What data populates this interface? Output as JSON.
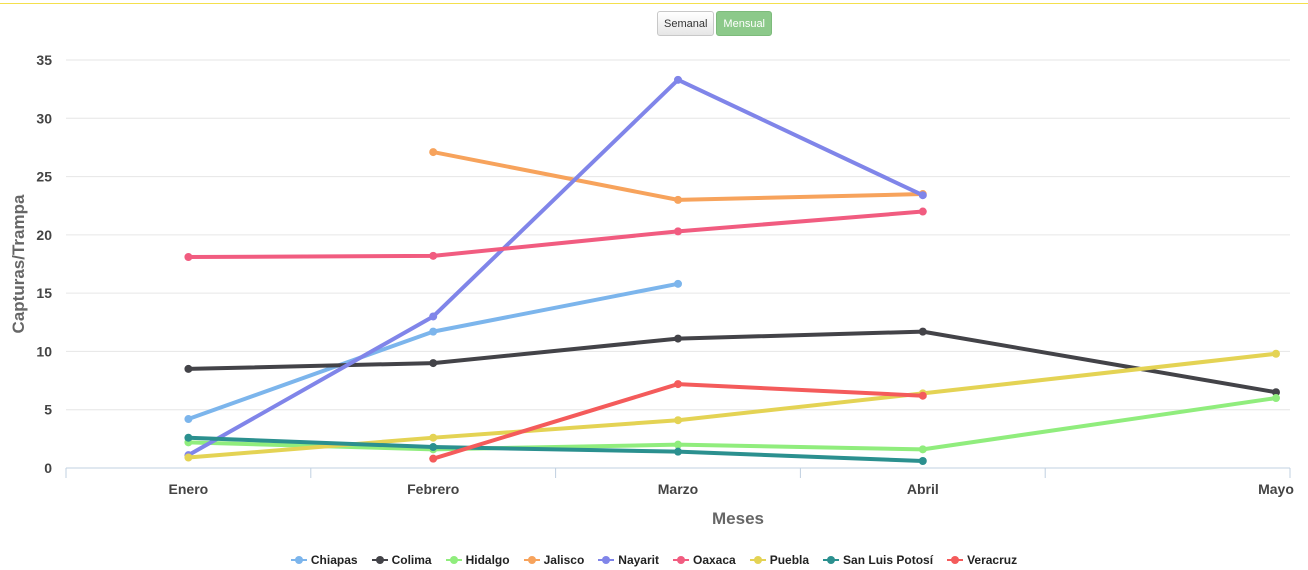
{
  "controls": {
    "weekly_label": "Semanal",
    "monthly_label": "Mensual"
  },
  "chart_data": {
    "type": "line",
    "title": "",
    "xlabel": "Meses",
    "ylabel": "Capturas/Trampa",
    "categories": [
      "Enero",
      "Febrero",
      "Marzo",
      "Abril",
      "Mayo"
    ],
    "yticks": [
      "0",
      "5",
      "10",
      "15",
      "20",
      "25",
      "30",
      "35"
    ],
    "ylim": [
      0,
      35
    ],
    "grid": true,
    "legend_position": "bottom",
    "series": [
      {
        "name": "Chiapas",
        "color": "#7cb5ec",
        "values": [
          4.2,
          11.7,
          15.8,
          null,
          null
        ]
      },
      {
        "name": "Colima",
        "color": "#434348",
        "values": [
          8.5,
          9.0,
          11.1,
          11.7,
          6.5
        ]
      },
      {
        "name": "Hidalgo",
        "color": "#90ed7d",
        "values": [
          2.2,
          1.6,
          2.0,
          1.6,
          6.0
        ]
      },
      {
        "name": "Jalisco",
        "color": "#f7a35c",
        "values": [
          null,
          27.1,
          23.0,
          23.5,
          null
        ]
      },
      {
        "name": "Nayarit",
        "color": "#8085e9",
        "values": [
          1.1,
          13.0,
          33.3,
          23.4,
          null
        ]
      },
      {
        "name": "Oaxaca",
        "color": "#f15c80",
        "values": [
          18.1,
          18.2,
          20.3,
          22.0,
          null
        ]
      },
      {
        "name": "Puebla",
        "color": "#e4d354",
        "values": [
          0.9,
          2.6,
          4.1,
          6.4,
          9.8
        ]
      },
      {
        "name": "San Luis Potosí",
        "color": "#2b908f",
        "values": [
          2.6,
          1.8,
          1.4,
          0.6,
          null
        ]
      },
      {
        "name": "Veracruz",
        "color": "#f45b5b",
        "values": [
          null,
          0.8,
          7.2,
          6.2,
          null
        ]
      }
    ]
  }
}
